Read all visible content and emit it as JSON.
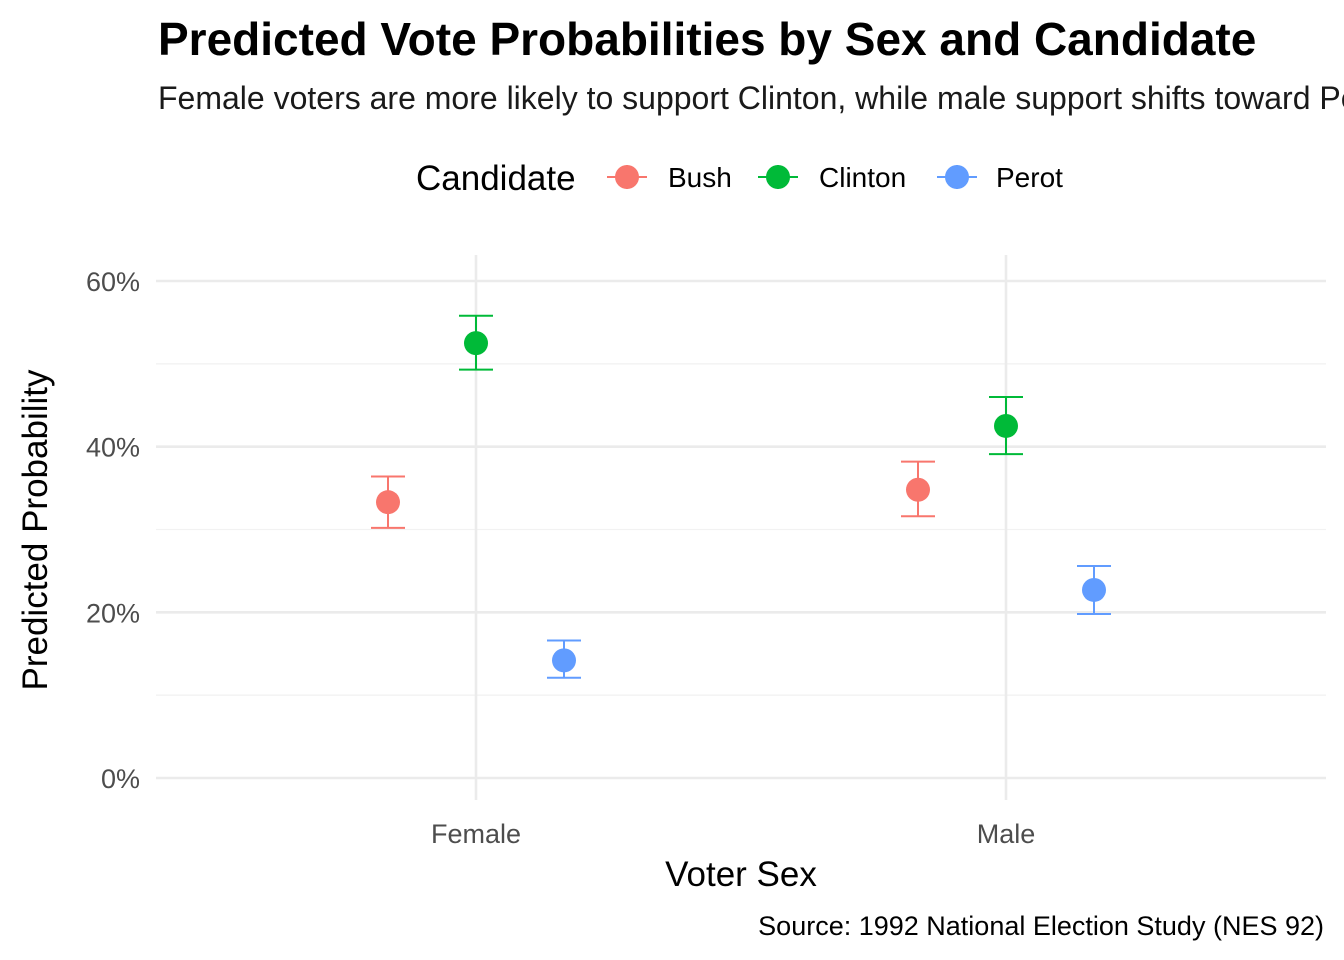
{
  "chart_data": {
    "type": "scatter",
    "title": "Predicted Vote Probabilities by Sex and Candidate",
    "subtitle": "Female voters are more likely to support Clinton, while male support shifts toward Perot",
    "caption": "Source: 1992 National Election Study (NES 92)",
    "xlabel": "Voter Sex",
    "ylabel": "Predicted Probability",
    "categories": [
      "Female",
      "Male"
    ],
    "ylim": [
      0,
      0.62
    ],
    "yticks": [
      0,
      0.2,
      0.4,
      0.6
    ],
    "ytick_labels": [
      "0%",
      "20%",
      "40%",
      "60%"
    ],
    "grid": true,
    "legend": {
      "title": "Candidate",
      "position": "top"
    },
    "series": [
      {
        "name": "Bush",
        "color": "#F8766D",
        "values": [
          0.333,
          0.348
        ],
        "lower": [
          0.302,
          0.316
        ],
        "upper": [
          0.364,
          0.382
        ]
      },
      {
        "name": "Clinton",
        "color": "#00BA38",
        "values": [
          0.525,
          0.425
        ],
        "lower": [
          0.493,
          0.391
        ],
        "upper": [
          0.558,
          0.46
        ]
      },
      {
        "name": "Perot",
        "color": "#619CFF",
        "values": [
          0.142,
          0.227
        ],
        "lower": [
          0.121,
          0.198
        ],
        "upper": [
          0.166,
          0.256
        ]
      }
    ]
  }
}
